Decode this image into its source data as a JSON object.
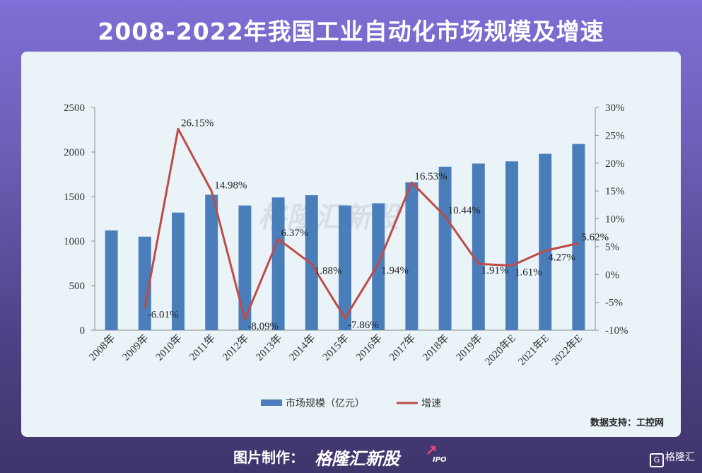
{
  "page_title": "2008-2022年我国工业自动化市场规模及增速",
  "source": "数据支持：工控网",
  "watermark": "格隆汇新股",
  "footer": {
    "label": "图片制作：",
    "brand": "格隆汇新股",
    "brand_suffix": "IPO",
    "corner": "格隆汇",
    "corner_icon_text": "G"
  },
  "colors": {
    "bar": "#4a7ebb",
    "line": "#be4b48",
    "background": "#eaf4f8"
  },
  "chart_data": {
    "type": "bar",
    "title": "2008-2022年我国工业自动化市场规模及增速",
    "categories": [
      "2008年",
      "2009年",
      "2010年",
      "2011年",
      "2012年",
      "2013年",
      "2014年",
      "2015年",
      "2016年",
      "2017年",
      "2018年",
      "2019年",
      "2020年E",
      "2021年E",
      "2022年E"
    ],
    "series": [
      {
        "name": "市场规模（亿元）",
        "type": "bar",
        "axis": "left",
        "values": [
          1120,
          1050,
          1320,
          1520,
          1400,
          1490,
          1515,
          1400,
          1425,
          1660,
          1835,
          1870,
          1895,
          1980,
          2090
        ]
      },
      {
        "name": "增速",
        "type": "line",
        "axis": "right",
        "values": [
          null,
          -6.01,
          26.15,
          14.98,
          -8.09,
          6.37,
          1.88,
          -7.86,
          1.94,
          16.53,
          10.44,
          1.91,
          1.61,
          4.27,
          5.62
        ],
        "labels": [
          null,
          "-6.01%",
          "26.15%",
          "14.98%",
          "-8.09%",
          "6.37%",
          "1.88%",
          "-7.86%",
          "1.94%",
          "16.53%",
          "10.44%",
          "1.91%",
          "1.61%",
          "4.27%",
          "5.62%"
        ]
      }
    ],
    "y_left": {
      "min": 0,
      "max": 2500,
      "ticks": [
        "0",
        "500",
        "1000",
        "1500",
        "2000",
        "2500"
      ]
    },
    "y_right": {
      "min": -10,
      "max": 30,
      "ticks": [
        "-10%",
        "-5%",
        "0%",
        "5%",
        "10%",
        "15%",
        "20%",
        "25%",
        "30%"
      ]
    },
    "legend_position": "bottom-center",
    "grid": false
  }
}
